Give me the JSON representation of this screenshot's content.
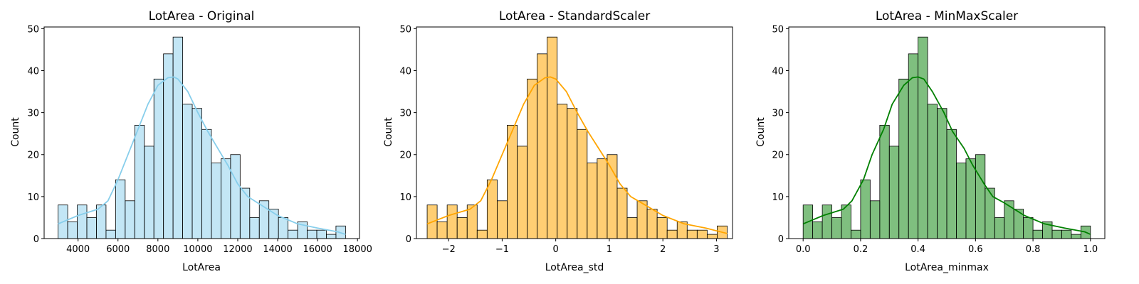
{
  "figure": {
    "panels": [
      {
        "title": "LotArea - Original",
        "xlabel": "LotArea",
        "ylabel": "Count",
        "fill": "#87ceeb",
        "fill_opacity": 0.5,
        "kde_color": "#87ceeb",
        "xticks": [
          "4000",
          "6000",
          "8000",
          "10000",
          "12000",
          "14000",
          "16000",
          "18000"
        ],
        "yticks": [
          "0",
          "10",
          "20",
          "30",
          "40",
          "50"
        ]
      },
      {
        "title": "LotArea - StandardScaler",
        "xlabel": "LotArea_std",
        "ylabel": "Count",
        "fill": "#ffa500",
        "fill_opacity": 0.55,
        "kde_color": "#ffa500",
        "xticks": [
          "−2",
          "−1",
          "0",
          "1",
          "2",
          "3"
        ],
        "yticks": [
          "0",
          "10",
          "20",
          "30",
          "40",
          "50"
        ]
      },
      {
        "title": "LotArea - MinMaxScaler",
        "xlabel": "LotArea_minmax",
        "ylabel": "Count",
        "fill": "#008000",
        "fill_opacity": 0.5,
        "kde_color": "#008000",
        "xticks": [
          "0.0",
          "0.2",
          "0.4",
          "0.6",
          "0.8",
          "1.0"
        ],
        "yticks": [
          "0",
          "10",
          "20",
          "30",
          "40",
          "50"
        ]
      }
    ]
  },
  "chart_data": [
    {
      "type": "bar",
      "title": "LotArea - Original",
      "xlabel": "LotArea",
      "ylabel": "Count",
      "xlim": [
        2300,
        18100
      ],
      "ylim": [
        0,
        50.4
      ],
      "xticks": [
        4000,
        6000,
        8000,
        10000,
        12000,
        14000,
        16000,
        18000
      ],
      "yticks": [
        0,
        10,
        20,
        30,
        40,
        50
      ],
      "bin_edges": [
        3000,
        3480,
        3960,
        4440,
        4920,
        5400,
        5880,
        6360,
        6840,
        7320,
        7800,
        8280,
        8760,
        9240,
        9720,
        10200,
        10680,
        11160,
        11640,
        12120,
        12600,
        13080,
        13560,
        14040,
        14520,
        15000,
        15480,
        15960,
        16440,
        16920,
        17400
      ],
      "counts": [
        8,
        4,
        8,
        5,
        8,
        2,
        14,
        9,
        27,
        22,
        38,
        44,
        48,
        32,
        31,
        26,
        18,
        19,
        20,
        12,
        5,
        9,
        7,
        5,
        2,
        4,
        2,
        2,
        1,
        3
      ],
      "kde_x": [
        3000,
        4000,
        5000,
        5500,
        6000,
        6500,
        7000,
        7500,
        8000,
        8500,
        8800,
        9000,
        9500,
        10000,
        10500,
        11000,
        11500,
        12000,
        12500,
        13000,
        14000,
        15000,
        16000,
        17000,
        17400
      ],
      "kde_y": [
        3.5,
        5.5,
        7,
        9,
        14,
        20,
        26,
        32,
        36.5,
        38.3,
        38.5,
        38,
        35,
        30,
        25.5,
        21.5,
        17.5,
        13,
        10,
        8.5,
        5.5,
        3.5,
        2.5,
        1.6,
        1
      ]
    },
    {
      "type": "bar",
      "title": "LotArea - StandardScaler",
      "xlabel": "LotArea_std",
      "ylabel": "Count",
      "xlim": [
        -2.6,
        3.3
      ],
      "ylim": [
        0,
        50.4
      ],
      "xticks": [
        -2,
        -1,
        0,
        1,
        2,
        3
      ],
      "yticks": [
        0,
        10,
        20,
        30,
        40,
        50
      ],
      "bin_edges": [
        -2.4,
        -2.2133,
        -2.0267,
        -1.84,
        -1.6533,
        -1.4667,
        -1.28,
        -1.0933,
        -0.9067,
        -0.72,
        -0.5333,
        -0.3467,
        -0.16,
        0.0267,
        0.2133,
        0.4,
        0.5867,
        0.7733,
        0.96,
        1.1467,
        1.3333,
        1.52,
        1.7067,
        1.8933,
        2.08,
        2.2667,
        2.4533,
        2.64,
        2.8267,
        3.0133,
        3.2
      ],
      "counts": [
        8,
        4,
        8,
        5,
        8,
        2,
        14,
        9,
        27,
        22,
        38,
        44,
        48,
        32,
        31,
        26,
        18,
        19,
        20,
        12,
        5,
        9,
        7,
        5,
        2,
        4,
        2,
        2,
        1,
        3
      ],
      "kde_x": [
        -2.4,
        -2.0,
        -1.6,
        -1.4,
        -1.2,
        -1.0,
        -0.8,
        -0.6,
        -0.4,
        -0.2,
        -0.1,
        0.0,
        0.2,
        0.4,
        0.6,
        0.8,
        1.0,
        1.2,
        1.4,
        1.6,
        2.0,
        2.4,
        2.8,
        3.2
      ],
      "kde_y": [
        3.5,
        5.5,
        7,
        9,
        14,
        20,
        26,
        32,
        36.5,
        38.3,
        38.5,
        38,
        35,
        30,
        25.5,
        21.5,
        17.5,
        13,
        10,
        8.5,
        5.5,
        3.5,
        2.5,
        1.2
      ]
    },
    {
      "type": "bar",
      "title": "LotArea - MinMaxScaler",
      "xlabel": "LotArea_minmax",
      "ylabel": "Count",
      "xlim": [
        -0.05,
        1.05
      ],
      "ylim": [
        0,
        50.4
      ],
      "xticks": [
        0.0,
        0.2,
        0.4,
        0.6,
        0.8,
        1.0
      ],
      "yticks": [
        0,
        10,
        20,
        30,
        40,
        50
      ],
      "bin_edges": [
        0.0,
        0.0333,
        0.0667,
        0.1,
        0.1333,
        0.1667,
        0.2,
        0.2333,
        0.2667,
        0.3,
        0.3333,
        0.3667,
        0.4,
        0.4333,
        0.4667,
        0.5,
        0.5333,
        0.5667,
        0.6,
        0.6333,
        0.6667,
        0.7,
        0.7333,
        0.7667,
        0.8,
        0.8333,
        0.8667,
        0.9,
        0.9333,
        0.9667,
        1.0
      ],
      "counts": [
        8,
        4,
        8,
        5,
        8,
        2,
        14,
        9,
        27,
        22,
        38,
        44,
        48,
        32,
        31,
        26,
        18,
        19,
        20,
        12,
        5,
        9,
        7,
        5,
        2,
        4,
        2,
        2,
        1,
        3
      ],
      "kde_x": [
        0.0,
        0.07,
        0.14,
        0.17,
        0.21,
        0.24,
        0.28,
        0.31,
        0.35,
        0.38,
        0.4,
        0.42,
        0.45,
        0.49,
        0.52,
        0.56,
        0.59,
        0.63,
        0.66,
        0.7,
        0.77,
        0.84,
        0.91,
        0.98,
        1.0
      ],
      "kde_y": [
        3.5,
        5.5,
        7,
        9,
        14,
        20,
        26,
        32,
        36.5,
        38.3,
        38.5,
        38,
        35,
        30,
        25.5,
        21.5,
        17.5,
        13,
        10,
        8.5,
        5.5,
        3.5,
        2.5,
        1.6,
        1
      ]
    }
  ]
}
